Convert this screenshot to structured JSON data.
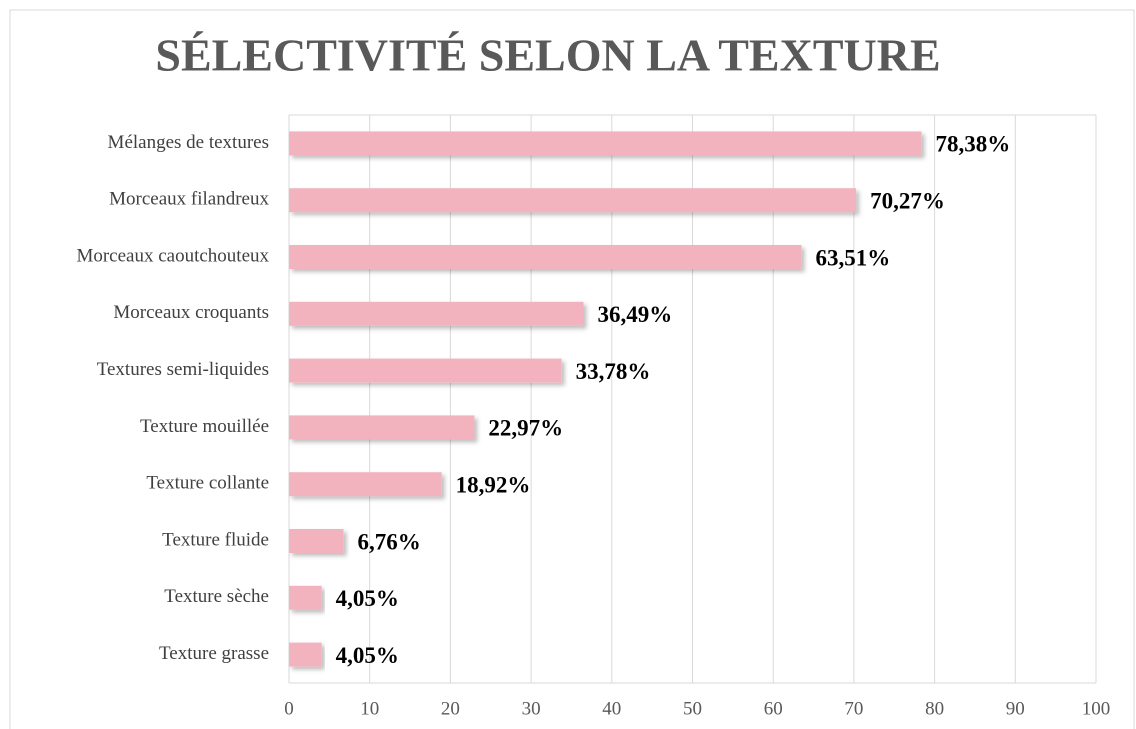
{
  "chart_data": {
    "type": "hbar",
    "title": "SÉLECTIVITÉ SELON LA TEXTURE",
    "categories": [
      "Mélanges de textures",
      "Morceaux filandreux",
      "Morceaux caoutchouteux",
      "Morceaux croquants",
      "Textures semi-liquides",
      "Texture mouillée",
      "Texture collante",
      "Texture fluide",
      "Texture sèche",
      "Texture grasse"
    ],
    "values": [
      78.38,
      70.27,
      63.51,
      36.49,
      33.78,
      22.97,
      18.92,
      6.76,
      4.05,
      4.05
    ],
    "value_labels": [
      "78,38%",
      "70,27%",
      "63,51%",
      "36,49%",
      "33,78%",
      "22,97%",
      "18,92%",
      "6,76%",
      "4,05%",
      "4,05%"
    ],
    "color": "#f2b3bf",
    "xlim": [
      0,
      100
    ],
    "xticks": [
      0,
      10,
      20,
      30,
      40,
      50,
      60,
      70,
      80,
      90,
      100
    ],
    "grid": true
  }
}
